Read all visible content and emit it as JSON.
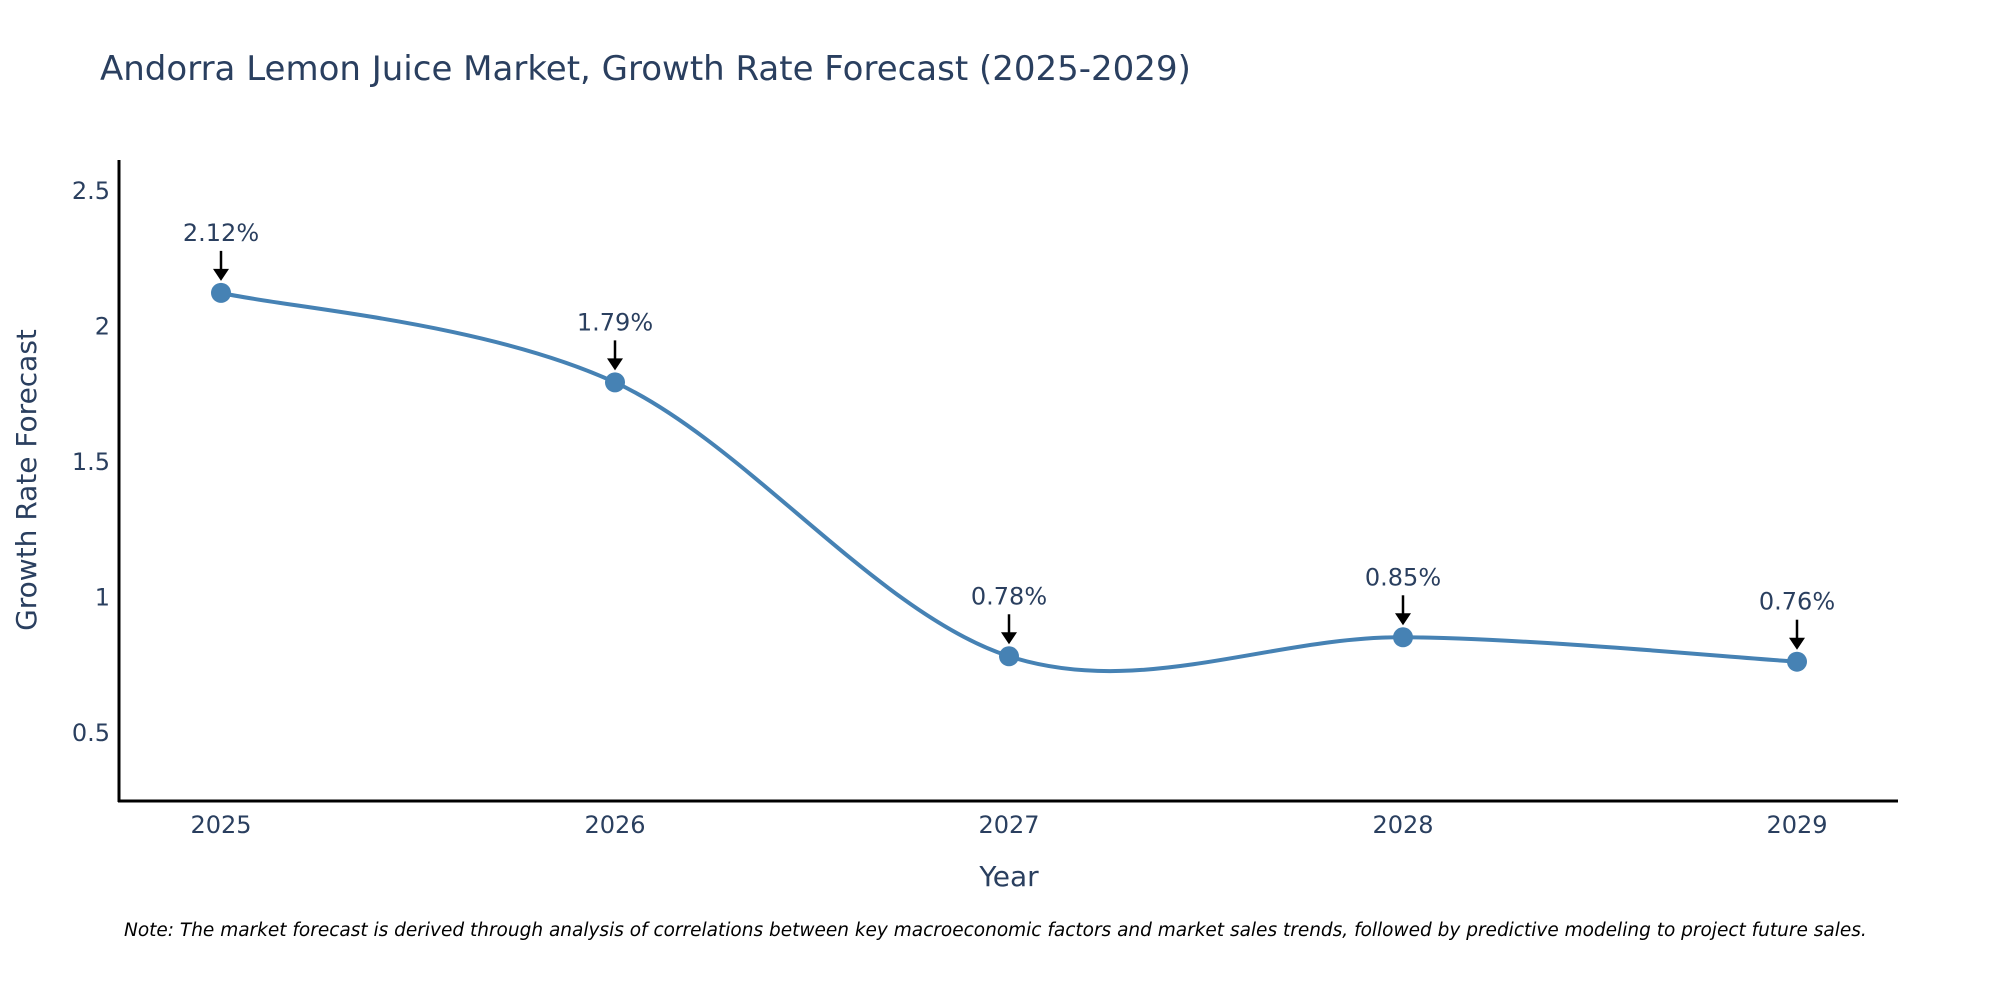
{
  "chart_data": {
    "type": "line",
    "title": "Andorra Lemon Juice Market, Growth Rate Forecast (2025-2029)",
    "xlabel": "Year",
    "ylabel": "Growth Rate Forecast",
    "categories": [
      "2025",
      "2026",
      "2027",
      "2028",
      "2029"
    ],
    "series": [
      {
        "name": "Growth Rate Forecast",
        "values": [
          2.12,
          1.79,
          0.78,
          0.85,
          0.76
        ],
        "color": "#4682b4"
      }
    ],
    "data_labels": [
      "2.12%",
      "1.79%",
      "0.78%",
      "0.85%",
      "0.76%"
    ],
    "y_ticks": [
      0.5,
      1,
      1.5,
      2,
      2.5
    ],
    "y_tick_labels": [
      "0.5",
      "1",
      "1.5",
      "2",
      "2.5"
    ],
    "ylim": [
      0.25,
      2.61
    ],
    "grid": false,
    "line_shape": "spline"
  },
  "note": "Note: The market forecast is derived through analysis of correlations between key macroeconomic factors and market sales trends, followed by predictive modeling to project future sales."
}
